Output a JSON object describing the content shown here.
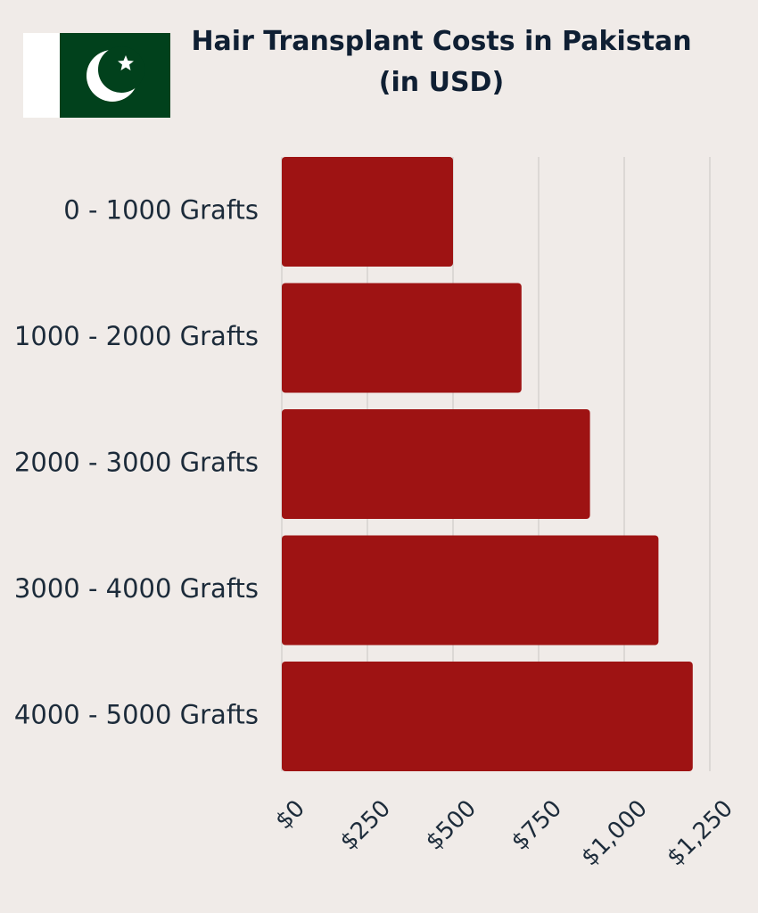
{
  "chart_data": {
    "type": "bar",
    "orientation": "horizontal",
    "title": "Hair Transplant Costs in Pakistan (in USD)",
    "categories": [
      "0 - 1000 Grafts",
      "1000 - 2000 Grafts",
      "2000 - 3000 Grafts",
      "3000 - 4000 Grafts",
      "4000 - 5000 Grafts"
    ],
    "values": [
      500,
      700,
      900,
      1100,
      1200
    ],
    "color": "#9e1313",
    "xlim": [
      0,
      1250
    ],
    "xticks": [
      {
        "value": 0,
        "label": "$0"
      },
      {
        "value": 250,
        "label": "$250"
      },
      {
        "value": 500,
        "label": "$500"
      },
      {
        "value": 750,
        "label": "$750"
      },
      {
        "value": 1000,
        "label": "$1,000"
      },
      {
        "value": 1250,
        "label": "$1,250"
      }
    ],
    "grid": true
  }
}
